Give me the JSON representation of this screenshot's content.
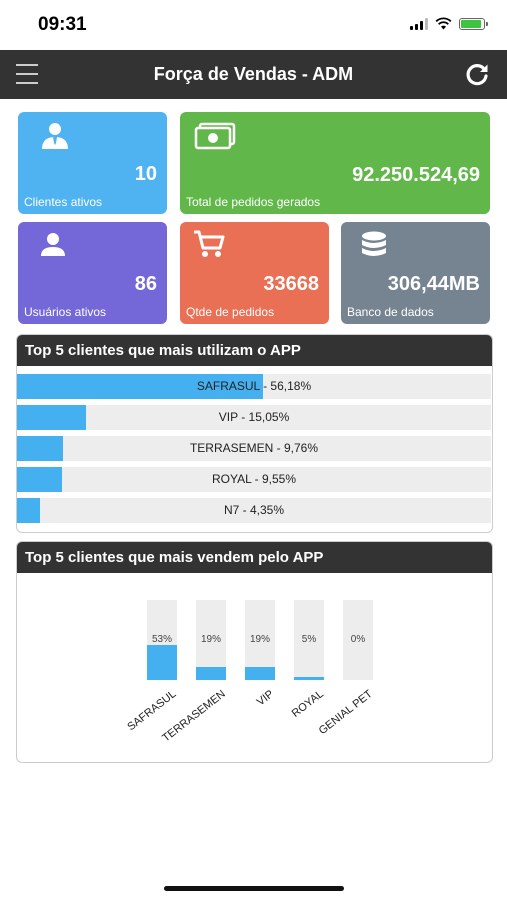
{
  "status_bar": {
    "time": "09:31"
  },
  "header": {
    "title": "Força de Vendas - ADM"
  },
  "tiles": [
    {
      "value": "10",
      "label": "Clientes ativos",
      "color": "#4fb3f2",
      "icon": "user-tie-icon"
    },
    {
      "value": "92.250.524,69",
      "label": "Total de pedidos gerados",
      "color": "#62b74a",
      "icon": "money-icon"
    },
    {
      "value": "86",
      "label": "Usuários ativos",
      "color": "#7467d8",
      "icon": "user-icon"
    },
    {
      "value": "33668",
      "label": "Qtde de pedidos",
      "color": "#e96f55",
      "icon": "cart-icon"
    },
    {
      "value": "306,44MB",
      "label": "Banco de dados",
      "color": "#768492",
      "icon": "database-icon"
    }
  ],
  "usage_panel": {
    "title": "Top 5 clientes que mais utilizam o APP",
    "rows": [
      {
        "label": "SAFRASUL - 56,18%",
        "percent": 56.18
      },
      {
        "label": "VIP - 15,05%",
        "percent": 15.05
      },
      {
        "label": "TERRASEMEN - 9,76%",
        "percent": 9.76
      },
      {
        "label": "ROYAL - 9,55%",
        "percent": 9.55
      },
      {
        "label": "N7 - 4,35%",
        "percent": 4.35
      }
    ]
  },
  "sales_panel": {
    "title": "Top 5 clientes que mais vendem pelo APP"
  },
  "chart_data": {
    "type": "bar",
    "title": "Top 5 clientes que mais vendem pelo APP",
    "categories": [
      "SAFRASUL",
      "TERRASEMEN",
      "VIP",
      "ROYAL",
      "GENIAL PET"
    ],
    "values": [
      53,
      19,
      19,
      5,
      0
    ],
    "value_labels": [
      "53%",
      "19%",
      "19%",
      "5%",
      "0%"
    ],
    "ylim": [
      0,
      100
    ],
    "grid": false,
    "colors": {
      "bar": "#45b0f0",
      "track": "#ededed"
    }
  }
}
